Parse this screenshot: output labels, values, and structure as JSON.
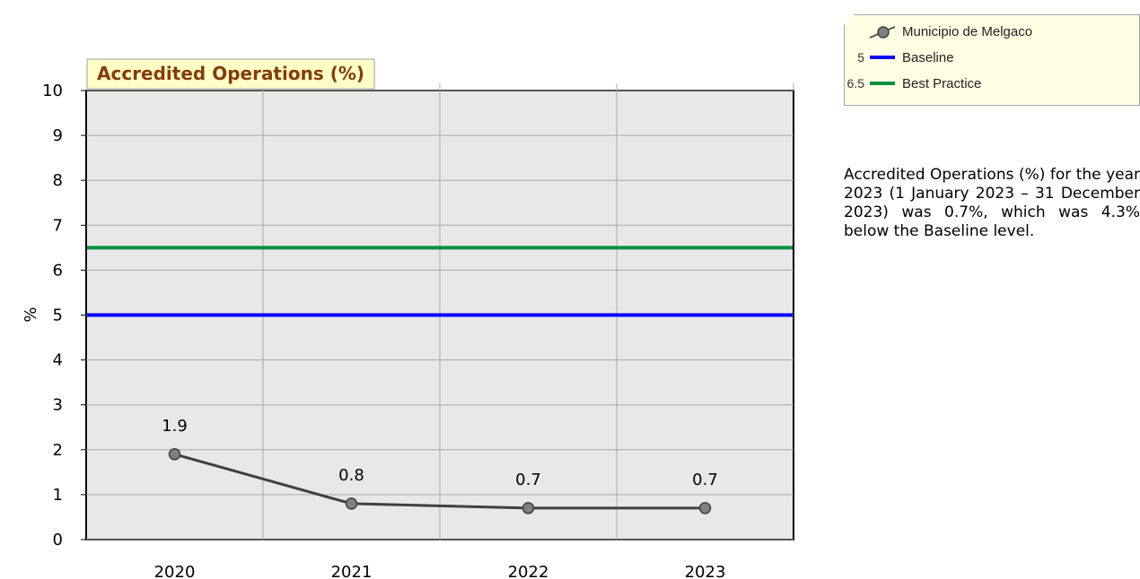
{
  "chart_data": {
    "type": "line",
    "title": "Accredited Operations (%)",
    "ylabel": "%",
    "xlabel": "",
    "categories": [
      "2020",
      "2021",
      "2022",
      "2023"
    ],
    "series": [
      {
        "name": "Municipio de Melgaco",
        "values": [
          1.9,
          0.8,
          0.7,
          0.7
        ],
        "labels": [
          "1.9",
          "0.8",
          "0.7",
          "0.7"
        ],
        "color": "#404040",
        "marker_color": "#808080"
      }
    ],
    "reference_lines": [
      {
        "name": "Baseline",
        "value": 5,
        "value_label": "5",
        "color": "#0000ff"
      },
      {
        "name": "Best Practice",
        "value": 6.5,
        "value_label": "6.5",
        "color": "#009040"
      }
    ],
    "ylim": [
      0,
      10
    ],
    "yticks": [
      "0",
      "1",
      "2",
      "3",
      "4",
      "5",
      "6",
      "7",
      "8",
      "9",
      "10"
    ],
    "grid": true,
    "legend_position": "top-right",
    "plot_background": "#e8e8e8",
    "title_background": "#ffffc8",
    "title_color": "#843c0c"
  },
  "summary": "Accredited Operations (%) for the year 2023 (1 January 2023 – 31 December 2023) was 0.7%, which was 4.3% below the Baseline level."
}
